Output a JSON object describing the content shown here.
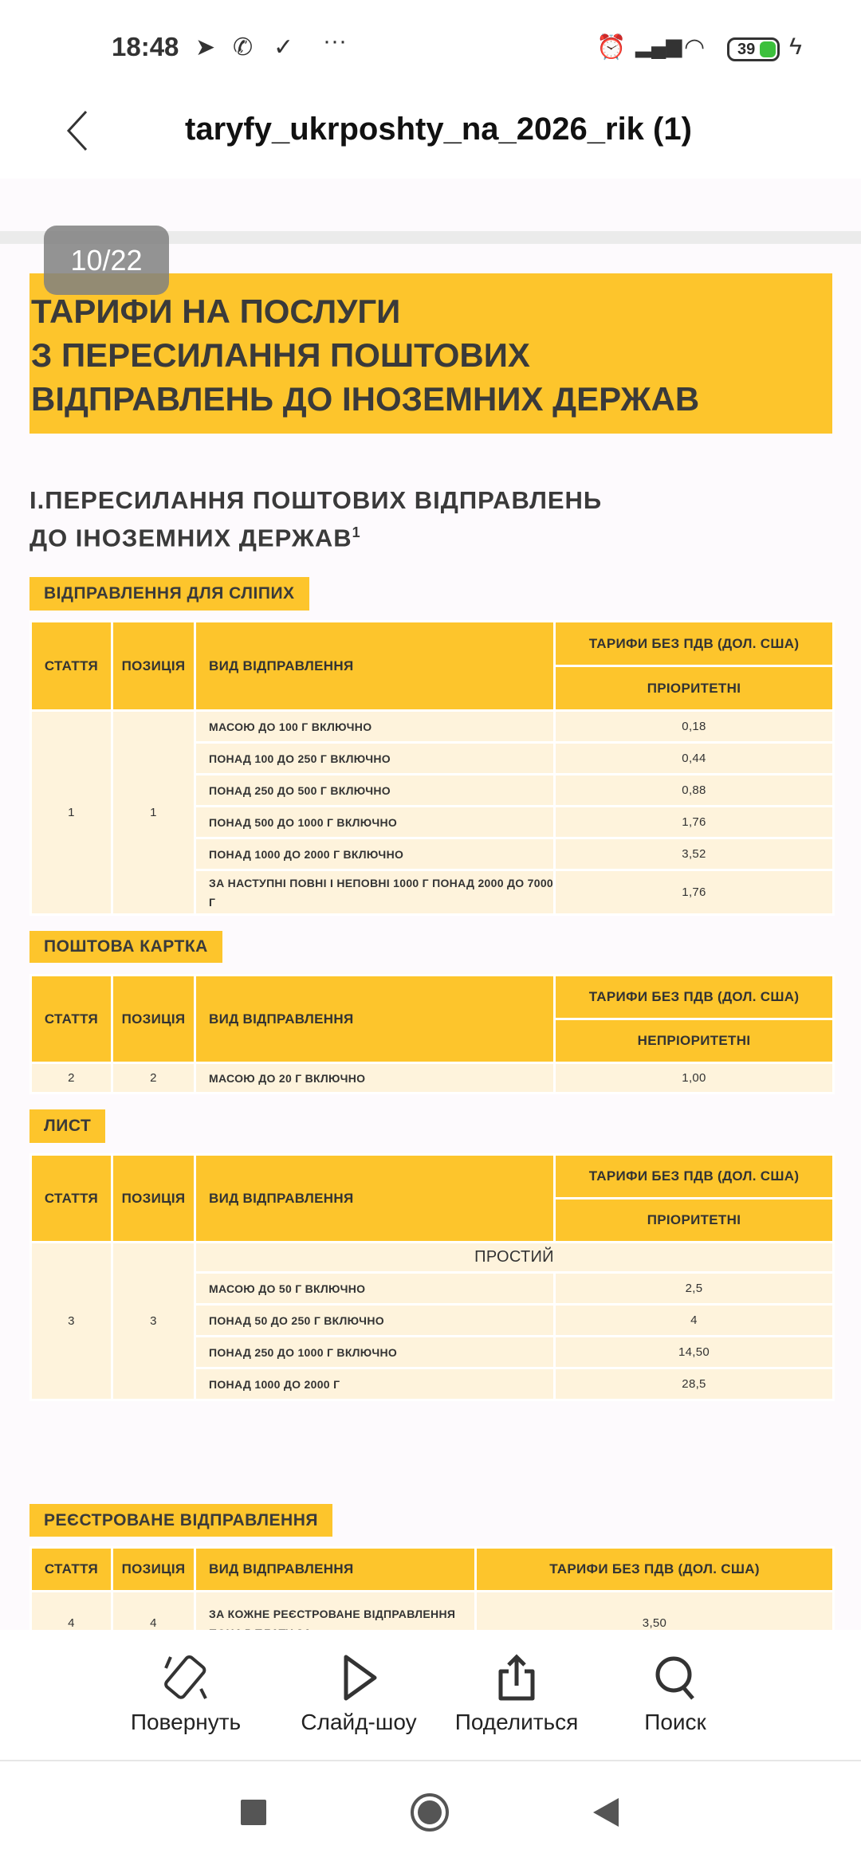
{
  "status_bar": {
    "time": "18:48",
    "battery": "39",
    "icons": [
      "telegram-icon",
      "viber-icon",
      "download-done-icon",
      "more-icon",
      "alarm-icon",
      "signal-icon",
      "wifi-icon",
      "battery-icon",
      "charging-icon"
    ]
  },
  "app_bar": {
    "title": "taryfy_ukrposhty_na_2026_rik (1)"
  },
  "page_indicator": "10/22",
  "colors": {
    "accent": "#fdc52c",
    "row": "#fef3dc"
  },
  "document": {
    "banner": [
      "ТАРИФИ НА ПОСЛУГИ",
      "З ПЕРЕСИЛАННЯ ПОШТОВИХ",
      "ВІДПРАВЛЕНЬ ДО ІНОЗЕМНИХ ДЕРЖАВ"
    ],
    "heading": [
      "І.ПЕРЕСИЛАННЯ ПОШТОВИХ ВІДПРАВЛЕНЬ",
      "ДО ІНОЗЕМНИХ ДЕРЖАВ"
    ],
    "heading_sup": "1",
    "headers": {
      "article": "СТАТТЯ",
      "position": "ПОЗИЦІЯ",
      "type": "ВИД ВІДПРАВЛЕННЯ",
      "tariff": "ТАРИФИ БЕЗ ПДВ (ДОЛ. США)"
    },
    "sections": [
      {
        "label": "ВІДПРАВЛЕННЯ ДЛЯ СЛІПИХ",
        "subheader": "ПРІОРИТЕТНІ",
        "article": "1",
        "position": "1",
        "rows": [
          [
            "МАСОЮ ДО 100 Г ВКЛЮЧНО",
            "0,18"
          ],
          [
            "ПОНАД 100 ДО 250 Г ВКЛЮЧНО",
            "0,44"
          ],
          [
            "ПОНАД 250 ДО 500 Г ВКЛЮЧНО",
            "0,88"
          ],
          [
            "ПОНАД 500 ДО 1000 Г ВКЛЮЧНО",
            "1,76"
          ],
          [
            "ПОНАД 1000 ДО 2000 Г ВКЛЮЧНО",
            "3,52"
          ],
          [
            "ЗА НАСТУПНІ ПОВНІ І НЕПОВНІ 1000 Г ПОНАД 2000 ДО 7000 Г",
            "1,76"
          ]
        ]
      },
      {
        "label": "ПОШТОВА КАРТКА",
        "subheader": "НЕПРІОРИТЕТНІ",
        "article": "2",
        "position": "2",
        "rows": [
          [
            "МАСОЮ ДО 20 Г ВКЛЮЧНО",
            "1,00"
          ]
        ]
      },
      {
        "label": "ЛИСТ",
        "subheader": "ПРІОРИТЕТНІ",
        "article": "3",
        "position": "3",
        "group": "ПРОСТИЙ",
        "rows": [
          [
            "МАСОЮ ДО 50 Г ВКЛЮЧНО",
            "2,5"
          ],
          [
            "ПОНАД 50 ДО 250 Г ВКЛЮЧНО",
            "4"
          ],
          [
            "ПОНАД 250 ДО 1000 Г ВКЛЮЧНО",
            "14,50"
          ],
          [
            "ПОНАД 1000 ДО 2000 Г",
            "28,5"
          ]
        ]
      },
      {
        "label": "РЕЄСТРОВАНЕ ВІДПРАВЛЕННЯ",
        "article": "4",
        "position": "4",
        "rows": [
          [
            "ЗА КОЖНЕ РЕЄСТРОВАНЕ ВІДПРАВЛЕННЯ ПОНАД ПЛАТУ ЗА",
            "3,50"
          ]
        ]
      }
    ]
  },
  "toolbar": [
    {
      "label": "Повернуть",
      "icon": "rotate-icon"
    },
    {
      "label": "Слайд-шоу",
      "icon": "play-icon"
    },
    {
      "label": "Поделиться",
      "icon": "share-icon"
    },
    {
      "label": "Поиск",
      "icon": "search-icon"
    }
  ],
  "nav": [
    "recents-button",
    "home-button",
    "back-button"
  ]
}
